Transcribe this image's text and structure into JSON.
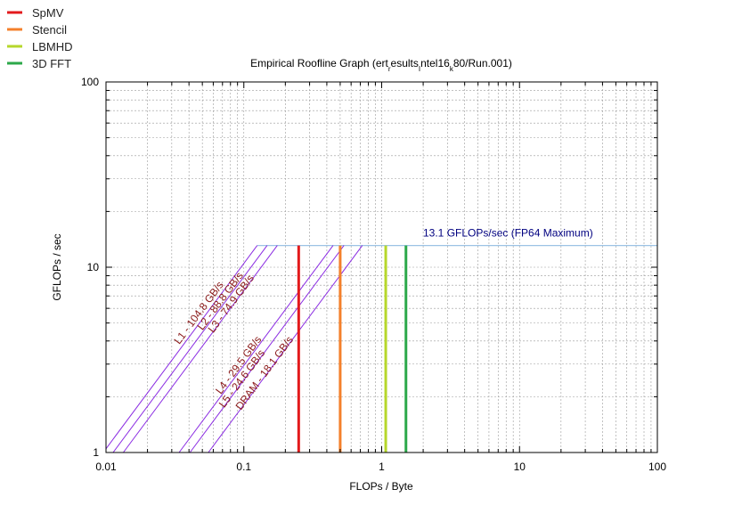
{
  "chart_data": {
    "type": "line",
    "title": "Empirical Roofline Graph (ert",
    "title_parts": [
      {
        "text": "Empirical Roofline Graph (ert",
        "sub": false
      },
      {
        "text": "r",
        "sub": true
      },
      {
        "text": "esults",
        "sub": false
      },
      {
        "text": "I",
        "sub": true
      },
      {
        "text": "ntel16",
        "sub": false
      },
      {
        "text": "k",
        "sub": true
      },
      {
        "text": "80/Run.001)",
        "sub": false
      }
    ],
    "xlabel": "FLOPs / Byte",
    "ylabel": "GFLOPs / sec",
    "xscale": "log",
    "yscale": "log",
    "xlim": [
      0.01,
      100
    ],
    "ylim": [
      1,
      100
    ],
    "grid": true,
    "x_ticks": [
      "0.01",
      "0.1",
      "1",
      "10",
      "100"
    ],
    "y_ticks": [
      "1",
      "10",
      "100"
    ],
    "peak": {
      "label": "13.1 GFLOPs/sec (FP64 Maximum)",
      "value": 13.1,
      "color": "#9cc3e5"
    },
    "bandwidths": [
      {
        "label": "L1 - 104.8 GB/s",
        "value": 104.8
      },
      {
        "label": "L2 - 88.8 GB/s",
        "value": 88.8
      },
      {
        "label": "L3 - 74.9 GB/s",
        "value": 74.9
      },
      {
        "label": "L4 - 29.5 GB/s",
        "value": 29.5
      },
      {
        "label": "L5 - 24.6 GB/s",
        "value": 24.6
      },
      {
        "label": "DRAM - 18.1 GB/s",
        "value": 18.1
      }
    ],
    "bandwidth_color": "#8a2be2",
    "kernels": [
      {
        "name": "SpMV",
        "x": 0.25,
        "color": "#e31a1c"
      },
      {
        "name": "Stencil",
        "x": 0.5,
        "color": "#f4802b"
      },
      {
        "name": "LBMHD",
        "x": 1.07,
        "color": "#b6d72b"
      },
      {
        "name": "3D FFT",
        "x": 1.5,
        "color": "#2ca84a"
      }
    ],
    "legend": "top-left"
  }
}
